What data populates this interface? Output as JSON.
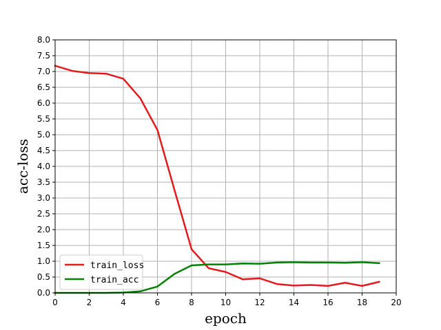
{
  "chart_data": {
    "type": "line",
    "title": "",
    "xlabel": "epoch",
    "ylabel": "acc-loss",
    "xlim": [
      0,
      20
    ],
    "ylim": [
      0,
      8
    ],
    "xticks": [
      0,
      2,
      4,
      6,
      8,
      10,
      12,
      14,
      16,
      18,
      20
    ],
    "xtick_labels": [
      "0",
      "2",
      "4",
      "6",
      "8",
      "10",
      "12",
      "14",
      "16",
      "18",
      "20"
    ],
    "yticks": [
      0,
      0.5,
      1,
      1.5,
      2,
      2.5,
      3,
      3.5,
      4,
      4.5,
      5,
      5.5,
      6,
      6.5,
      7,
      7.5,
      8
    ],
    "ytick_labels": [
      "0.0",
      "0.5",
      "1.0",
      "1.5",
      "2.0",
      "2.5",
      "3.0",
      "3.5",
      "4.0",
      "4.5",
      "5.0",
      "5.5",
      "6.0",
      "6.5",
      "7.0",
      "7.5",
      "8.0"
    ],
    "grid": true,
    "legend_position": "lower-left",
    "x": [
      0,
      1,
      2,
      3,
      4,
      5,
      6,
      7,
      8,
      9,
      10,
      11,
      12,
      13,
      14,
      15,
      16,
      17,
      18,
      19
    ],
    "series": [
      {
        "name": "train_loss",
        "color": "#e31a1c",
        "values": [
          7.18,
          7.02,
          6.95,
          6.93,
          6.77,
          6.15,
          5.15,
          3.25,
          1.38,
          0.78,
          0.66,
          0.43,
          0.46,
          0.28,
          0.23,
          0.25,
          0.22,
          0.32,
          0.22,
          0.35
        ]
      },
      {
        "name": "train_acc",
        "color": "#008000",
        "values": [
          0.0,
          0.0,
          0.0,
          0.0,
          0.01,
          0.05,
          0.2,
          0.6,
          0.87,
          0.9,
          0.9,
          0.93,
          0.92,
          0.96,
          0.97,
          0.96,
          0.96,
          0.95,
          0.97,
          0.94
        ]
      }
    ]
  }
}
